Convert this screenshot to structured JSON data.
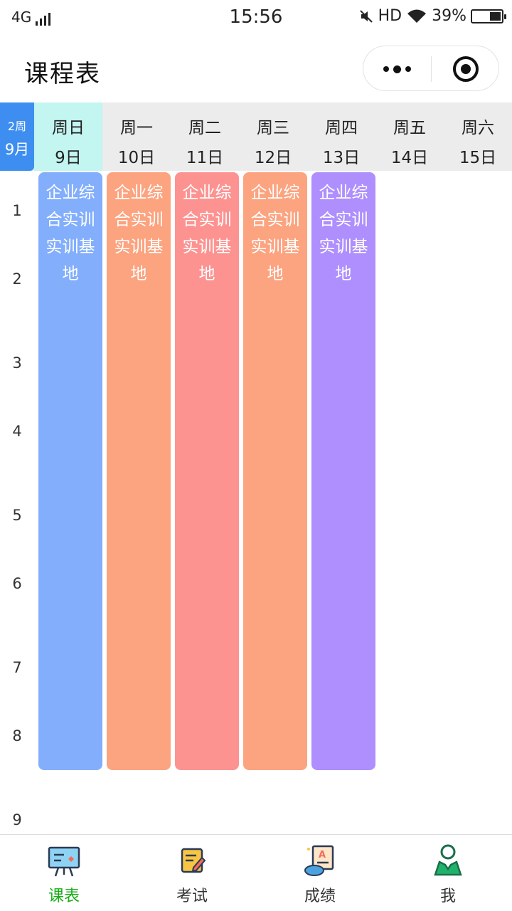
{
  "status_bar": {
    "network": "4G",
    "time": "15:56",
    "hd": "HD",
    "battery_percent_text": "39%",
    "battery_level": 0.39
  },
  "header": {
    "title": "课程表"
  },
  "week_header": {
    "week": "2周",
    "month": "9月",
    "days": [
      {
        "name": "周日",
        "date": "9日",
        "today": true
      },
      {
        "name": "周一",
        "date": "10日"
      },
      {
        "name": "周二",
        "date": "11日"
      },
      {
        "name": "周三",
        "date": "12日"
      },
      {
        "name": "周四",
        "date": "13日"
      },
      {
        "name": "周五",
        "date": "14日"
      },
      {
        "name": "周六",
        "date": "15日"
      }
    ]
  },
  "periods": [
    "1",
    "2",
    "3",
    "4",
    "5",
    "6",
    "7",
    "8",
    "9"
  ],
  "courses": [
    {
      "day": "周日",
      "name": "企业综合实训实训基地",
      "color": "#82aefc"
    },
    {
      "day": "周一",
      "name": "企业综合实训实训基地",
      "color": "#fca37f"
    },
    {
      "day": "周二",
      "name": "企业综合实训实训基地",
      "color": "#fd9391"
    },
    {
      "day": "周三",
      "name": "企业综合实训实训基地",
      "color": "#fca37f"
    },
    {
      "day": "周四",
      "name": "企业综合实训实训基地",
      "color": "#ae8ffd"
    }
  ],
  "tab_bar": {
    "tabs": [
      {
        "label": "课表",
        "icon": "blackboard-icon",
        "active": true
      },
      {
        "label": "考试",
        "icon": "exam-scroll-icon"
      },
      {
        "label": "成绩",
        "icon": "grade-report-icon"
      },
      {
        "label": "我",
        "icon": "user-profile-icon"
      }
    ]
  },
  "colors": {
    "accent_blue": "#3d8ef0",
    "today_highlight": "#c3f5f1",
    "header_bg": "#ececec",
    "tab_active": "#1aad19"
  }
}
